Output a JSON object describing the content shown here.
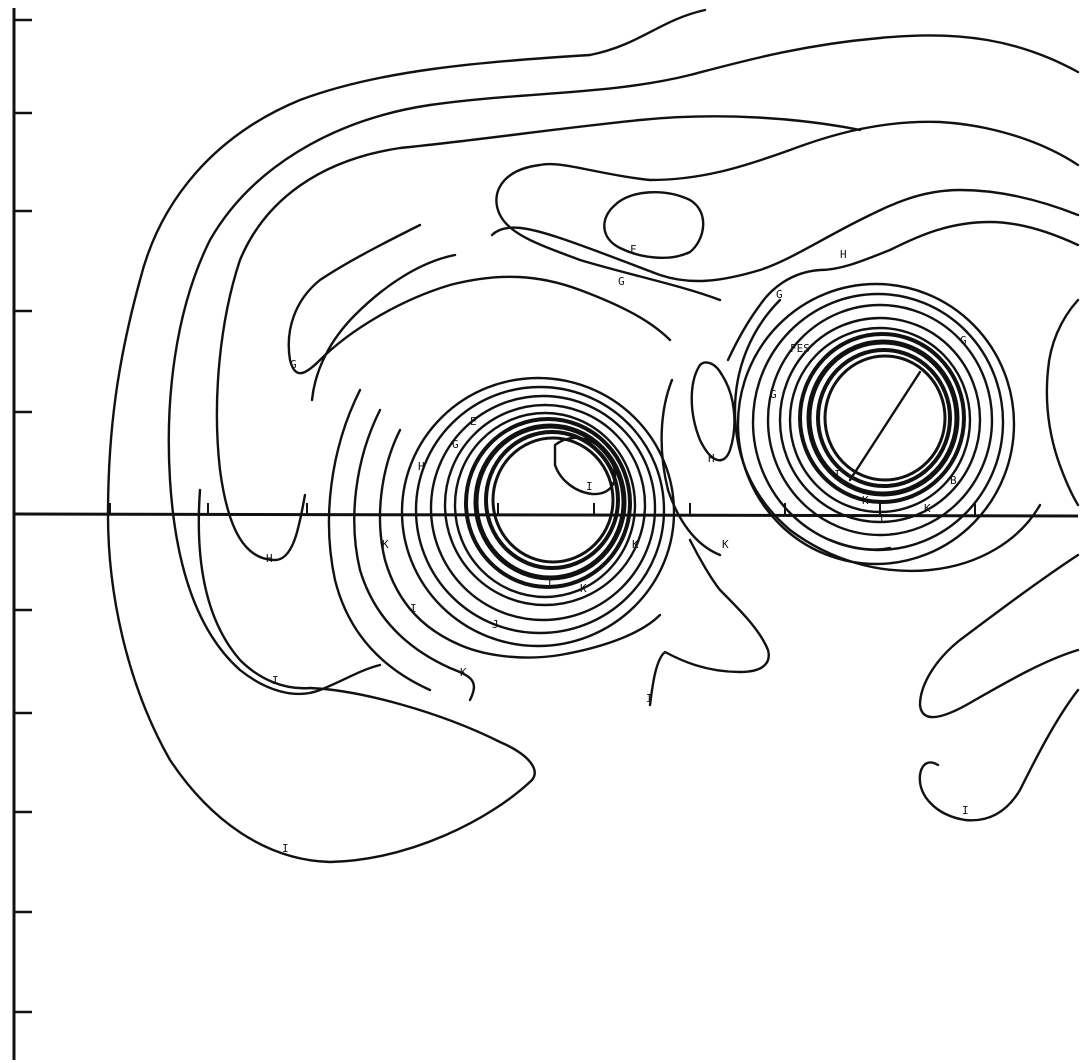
{
  "figure": {
    "ink_color": "#111111",
    "background": "#ffffff"
  },
  "contour_labels": [
    {
      "id": "left-outer-ring",
      "text": "I"
    },
    {
      "id": "left-lower-loop",
      "text": "H"
    },
    {
      "id": "left-lower-tongue",
      "text": "I"
    },
    {
      "id": "upper-arc",
      "text": "G"
    },
    {
      "id": "top-small-loop",
      "text": "F"
    },
    {
      "id": "top-saddle",
      "text": "G"
    },
    {
      "id": "lower-left-k",
      "text": "K"
    },
    {
      "id": "middle-lower-i",
      "text": "I"
    },
    {
      "id": "left-cyl-left-g",
      "text": "G"
    },
    {
      "id": "left-cyl-h",
      "text": "H"
    },
    {
      "id": "left-cyl-k-left",
      "text": "K"
    },
    {
      "id": "left-cyl-inner-i",
      "text": "I"
    },
    {
      "id": "left-cyl-bottom-l",
      "text": "L"
    },
    {
      "id": "left-cyl-bottom-k",
      "text": "K"
    },
    {
      "id": "left-cyl-bottom-j",
      "text": "J"
    },
    {
      "id": "left-cyl-right-k",
      "text": "K"
    },
    {
      "id": "left-cyl-right-i",
      "text": "I"
    },
    {
      "id": "left-cyl-top-e",
      "text": "E"
    },
    {
      "id": "gap-h",
      "text": "H"
    },
    {
      "id": "gap-k",
      "text": "K"
    },
    {
      "id": "right-cyl-top-h",
      "text": "H"
    },
    {
      "id": "right-cyl-top-g",
      "text": "G"
    },
    {
      "id": "right-cyl-fes",
      "text": "FES"
    },
    {
      "id": "right-cyl-right-g",
      "text": "G"
    },
    {
      "id": "right-cyl-left-g",
      "text": "G"
    },
    {
      "id": "right-cyl-inner-i",
      "text": "I"
    },
    {
      "id": "right-cyl-k",
      "text": "K"
    },
    {
      "id": "right-cyl-l",
      "text": "L"
    },
    {
      "id": "right-cyl-b",
      "text": "B"
    },
    {
      "id": "right-cyl-bottom-k",
      "text": "K"
    },
    {
      "id": "right-lower-i",
      "text": "I"
    }
  ]
}
